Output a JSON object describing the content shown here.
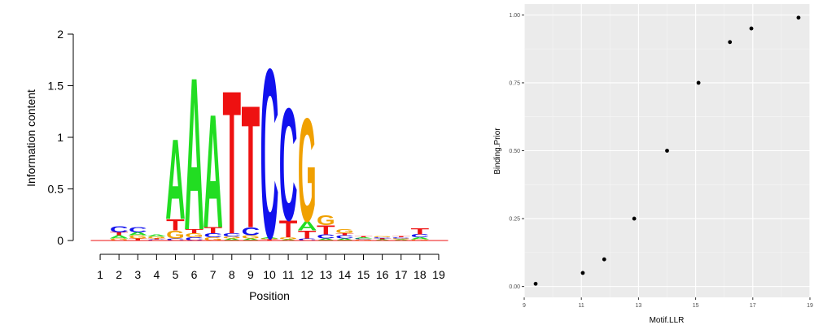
{
  "chart_data": [
    {
      "type": "sequence-logo",
      "xlabel": "Position",
      "ylabel": "Information content",
      "ylim": [
        0,
        2
      ],
      "yticks": [
        0,
        0.5,
        1,
        1.5,
        2
      ],
      "ytick_labels": [
        "0",
        "0.5",
        "1",
        "1.5",
        "2"
      ],
      "positions": [
        1,
        2,
        3,
        4,
        5,
        6,
        7,
        8,
        9,
        10,
        11,
        12,
        13,
        14,
        15,
        16,
        17,
        18,
        19
      ],
      "colors": {
        "A": "#22dd22",
        "C": "#1111ee",
        "G": "#f0a000",
        "T": "#ee1111"
      },
      "columns": [
        {
          "position": 1,
          "letters": []
        },
        {
          "position": 2,
          "letters": [
            {
              "base": "G",
              "height": 0.02
            },
            {
              "base": "A",
              "height": 0.03
            },
            {
              "base": "T",
              "height": 0.03
            },
            {
              "base": "C",
              "height": 0.06
            }
          ]
        },
        {
          "position": 3,
          "letters": [
            {
              "base": "T",
              "height": 0.02
            },
            {
              "base": "G",
              "height": 0.03
            },
            {
              "base": "A",
              "height": 0.03
            },
            {
              "base": "C",
              "height": 0.05
            }
          ]
        },
        {
          "position": 4,
          "letters": [
            {
              "base": "C",
              "height": 0.01
            },
            {
              "base": "T",
              "height": 0.01
            },
            {
              "base": "G",
              "height": 0.02
            },
            {
              "base": "A",
              "height": 0.02
            }
          ]
        },
        {
          "position": 5,
          "letters": [
            {
              "base": "C",
              "height": 0.02
            },
            {
              "base": "G",
              "height": 0.08
            },
            {
              "base": "T",
              "height": 0.11
            },
            {
              "base": "A",
              "height": 0.8
            }
          ]
        },
        {
          "position": 6,
          "letters": [
            {
              "base": "C",
              "height": 0.03
            },
            {
              "base": "G",
              "height": 0.04
            },
            {
              "base": "T",
              "height": 0.04
            },
            {
              "base": "A",
              "height": 1.52
            }
          ]
        },
        {
          "position": 7,
          "letters": [
            {
              "base": "G",
              "height": 0.03
            },
            {
              "base": "C",
              "height": 0.04
            },
            {
              "base": "T",
              "height": 0.06
            },
            {
              "base": "A",
              "height": 1.13
            }
          ]
        },
        {
          "position": 8,
          "letters": [
            {
              "base": "A",
              "height": 0.02
            },
            {
              "base": "G",
              "height": 0.02
            },
            {
              "base": "C",
              "height": 0.03
            },
            {
              "base": "T",
              "height": 1.43
            }
          ]
        },
        {
          "position": 9,
          "letters": [
            {
              "base": "A",
              "height": 0.02
            },
            {
              "base": "G",
              "height": 0.03
            },
            {
              "base": "C",
              "height": 0.08
            },
            {
              "base": "T",
              "height": 1.22
            }
          ]
        },
        {
          "position": 10,
          "letters": [
            {
              "base": "T",
              "height": 0.01
            },
            {
              "base": "G",
              "height": 0.01
            },
            {
              "base": "A",
              "height": 0.01
            },
            {
              "base": "C",
              "height": 1.69
            }
          ]
        },
        {
          "position": 11,
          "letters": [
            {
              "base": "A",
              "height": 0.01
            },
            {
              "base": "G",
              "height": 0.02
            },
            {
              "base": "T",
              "height": 0.17
            },
            {
              "base": "C",
              "height": 1.12
            }
          ]
        },
        {
          "position": 12,
          "letters": [
            {
              "base": "C",
              "height": 0.02
            },
            {
              "base": "T",
              "height": 0.08
            },
            {
              "base": "A",
              "height": 0.09
            },
            {
              "base": "G",
              "height": 1.03
            }
          ]
        },
        {
          "position": 13,
          "letters": [
            {
              "base": "A",
              "height": 0.02
            },
            {
              "base": "C",
              "height": 0.04
            },
            {
              "base": "T",
              "height": 0.09
            },
            {
              "base": "G",
              "height": 0.1
            }
          ]
        },
        {
          "position": 14,
          "letters": [
            {
              "base": "A",
              "height": 0.02
            },
            {
              "base": "C",
              "height": 0.03
            },
            {
              "base": "T",
              "height": 0.02
            },
            {
              "base": "G",
              "height": 0.04
            }
          ]
        },
        {
          "position": 15,
          "letters": [
            {
              "base": "G",
              "height": 0.01
            },
            {
              "base": "C",
              "height": 0.01
            },
            {
              "base": "A",
              "height": 0.01
            },
            {
              "base": "T",
              "height": 0.01
            }
          ]
        },
        {
          "position": 16,
          "letters": [
            {
              "base": "A",
              "height": 0.01
            },
            {
              "base": "T",
              "height": 0.01
            },
            {
              "base": "C",
              "height": 0.01
            },
            {
              "base": "G",
              "height": 0.01
            }
          ]
        },
        {
          "position": 17,
          "letters": [
            {
              "base": "A",
              "height": 0.01
            },
            {
              "base": "G",
              "height": 0.01
            },
            {
              "base": "C",
              "height": 0.01
            },
            {
              "base": "T",
              "height": 0.01
            }
          ]
        },
        {
          "position": 18,
          "letters": [
            {
              "base": "G",
              "height": 0.01
            },
            {
              "base": "A",
              "height": 0.02
            },
            {
              "base": "C",
              "height": 0.03
            },
            {
              "base": "T",
              "height": 0.06
            }
          ]
        },
        {
          "position": 19,
          "letters": []
        }
      ]
    },
    {
      "type": "scatter",
      "xlabel": "Motif.LLR",
      "ylabel": "Binding.Prior",
      "xlim": [
        9,
        19
      ],
      "ylim": [
        -0.04,
        1.04
      ],
      "xticks": [
        9,
        11,
        13,
        15,
        17,
        19
      ],
      "xtick_labels": [
        "9",
        "11",
        "13",
        "15",
        "17",
        "19"
      ],
      "yticks": [
        0,
        0.25,
        0.5,
        0.75,
        1
      ],
      "ytick_labels": [
        "0.00",
        "0.25",
        "0.50",
        "0.75",
        "1.00"
      ],
      "background": "#ebebeb",
      "grid": true,
      "x": [
        9.4,
        11.05,
        11.8,
        12.85,
        14.0,
        15.1,
        16.2,
        16.95,
        18.6
      ],
      "y": [
        0.01,
        0.05,
        0.1,
        0.25,
        0.5,
        0.75,
        0.9,
        0.95,
        0.99
      ]
    }
  ]
}
